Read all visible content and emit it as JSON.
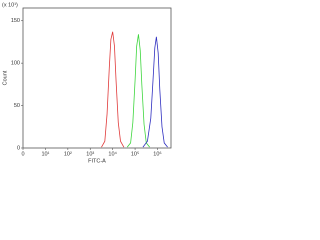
{
  "chart_data": {
    "type": "line",
    "y_scale_note": "(x 10¹)",
    "xlabel": "FITC-A",
    "ylabel": "Count",
    "xlim": [
      0,
      4000000
    ],
    "xscale": "biexponential",
    "xticks": [
      0,
      {
        "value": 10,
        "label": "10¹"
      },
      {
        "value": 100,
        "label": "10²"
      },
      {
        "value": 1000,
        "label": "10³"
      },
      {
        "value": 10000,
        "label": "10⁴"
      },
      {
        "value": 100000,
        "label": "10⁵"
      },
      {
        "value": 1000000,
        "label": "10⁶"
      }
    ],
    "ylim": [
      0,
      165
    ],
    "yticks": [
      0,
      50,
      100,
      150
    ],
    "series": [
      {
        "color": "#e03a3a",
        "x": [
          3162,
          4467,
          5623,
          7079,
          8318,
          10000,
          12023,
          14125,
          17783,
          22387,
          31623
        ],
        "values": [
          1,
          8,
          40,
          95,
          128,
          137,
          120,
          80,
          30,
          8,
          1
        ]
      },
      {
        "color": "#3ed63e",
        "x": [
          44668,
          63096,
          79433,
          100000,
          117490,
          141254,
          169824,
          199526,
          251189,
          316228,
          446684
        ],
        "values": [
          1,
          6,
          30,
          80,
          120,
          134,
          115,
          75,
          28,
          6,
          1
        ]
      },
      {
        "color": "#2f2fc0",
        "x": [
          223872,
          354813,
          501187,
          630957,
          758578,
          891251,
          1071519,
          1258925,
          1584893,
          1995262,
          2818383
        ],
        "values": [
          1,
          8,
          35,
          80,
          118,
          131,
          112,
          70,
          25,
          6,
          1
        ]
      }
    ]
  }
}
